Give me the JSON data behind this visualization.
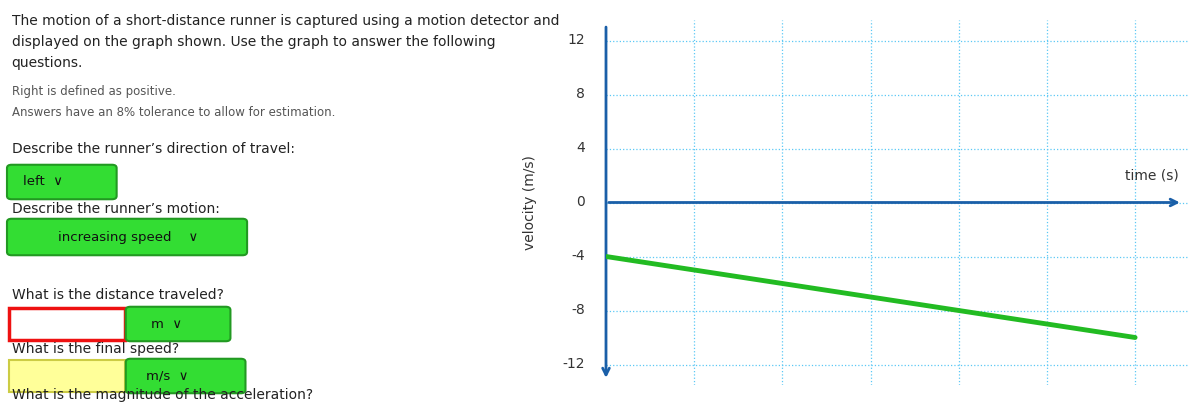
{
  "title_text_line1": "The motion of a short-distance runner is captured using a motion detector and",
  "title_text_line2": "displayed on the graph shown. Use the graph to answer the following",
  "title_text_line3": "questions.",
  "subtitle1": "Right is defined as positive.",
  "subtitle2": "Answers have an 8% tolerance to allow for estimation.",
  "q1_label": "Describe the runner’s direction of travel:",
  "q1_answer": "left",
  "q2_label": "Describe the runner’s motion:",
  "q2_answer": "increasing speed",
  "q3_label": "What is the distance traveled?",
  "q3_unit": "m",
  "q4_label": "What is the final speed?",
  "q4_unit": "m/s",
  "q5_label": "What is the magnitude of the acceleration?",
  "line_x": [
    0,
    30
  ],
  "line_y": [
    -4,
    -10
  ],
  "xlim": [
    0,
    33
  ],
  "ylim": [
    -13.5,
    13.5
  ],
  "yticks": [
    -12,
    -8,
    -4,
    0,
    4,
    8,
    12
  ],
  "xticks": [
    5,
    10,
    15,
    20,
    25,
    30
  ],
  "xlabel": "time (s)",
  "ylabel": "velocity (m/s)",
  "grid_color": "#5bc8f5",
  "axis_color": "#1a5fa8",
  "line_color": "#22bb22",
  "line_width": 3.5,
  "bg_color": "#ffffff",
  "green_btn_color": "#33dd33",
  "green_btn_edge": "#229922",
  "red_outline_color": "#ee1111",
  "yellow_fill_color": "#ffff99",
  "yellow_edge_color": "#cccc44",
  "text_color_dark": "#222222",
  "text_color_mid": "#555555"
}
